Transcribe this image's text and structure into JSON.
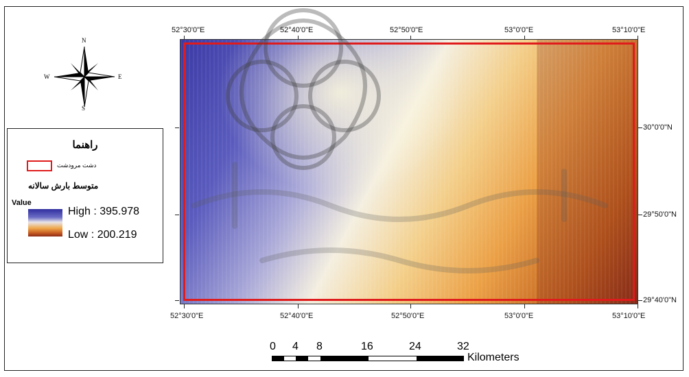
{
  "map": {
    "top_ticks": [
      "52°30'0\"E",
      "52°40'0\"E",
      "52°50'0\"E",
      "53°0'0\"E",
      "53°10'0\"E"
    ],
    "bottom_ticks": [
      "52°30'0\"E",
      "52°40'0\"E",
      "52°50'0\"E",
      "53°0'0\"E",
      "53°10'0\"E"
    ],
    "right_ticks": [
      "30°0'0\"N",
      "29°50'0\"N",
      "29°40'0\"N"
    ],
    "boundary_color": "#e01b1b"
  },
  "north_arrow": {
    "n": "N",
    "s": "S",
    "e": "E",
    "w": "W"
  },
  "legend": {
    "title": "راهنما",
    "boundary_label": "دشت مرودشت",
    "subtitle": "متوسط بارش سالانه",
    "value_label": "Value",
    "high": "High : 395.978",
    "low": "Low : 200.219",
    "ramp_colors": [
      "#2f2e9e",
      "#6b6cc6",
      "#e8e4e8",
      "#efa84c",
      "#c3581f",
      "#8c2b18"
    ]
  },
  "scale_bar": {
    "labels": [
      "0",
      "4",
      "8",
      "16",
      "24",
      "32"
    ],
    "unit": "Kilometers"
  }
}
